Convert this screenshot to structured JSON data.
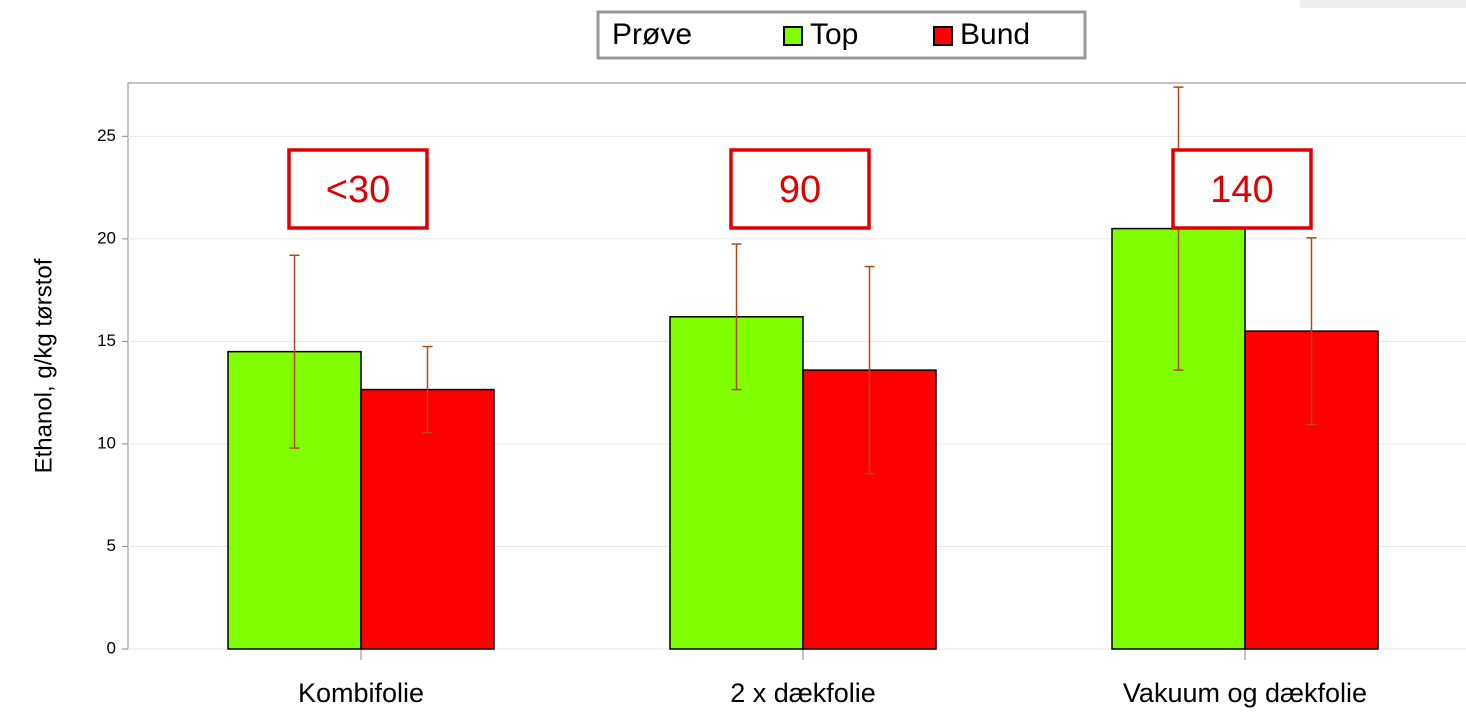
{
  "chart_data": {
    "type": "bar",
    "y_label": "Ethanol, g/kg tørstof",
    "legend_title": "Prøve",
    "categories": [
      "Kombifolie",
      "2 x dækfolie",
      "Vakuum og dækfolie"
    ],
    "series": [
      {
        "name": "Top",
        "color": "#80ff00",
        "values": [
          14.5,
          16.2,
          20.5
        ],
        "errors": [
          4.7,
          3.55,
          6.9
        ]
      },
      {
        "name": "Bund",
        "color": "#ff0000",
        "values": [
          12.65,
          13.6,
          15.5
        ],
        "errors": [
          2.1,
          5.05,
          4.55
        ]
      }
    ],
    "annotations": [
      "<30",
      "90",
      "140"
    ],
    "ylim": [
      0,
      27.6
    ],
    "yticks": [
      0,
      5,
      10,
      15,
      20,
      25
    ],
    "grid": true
  }
}
